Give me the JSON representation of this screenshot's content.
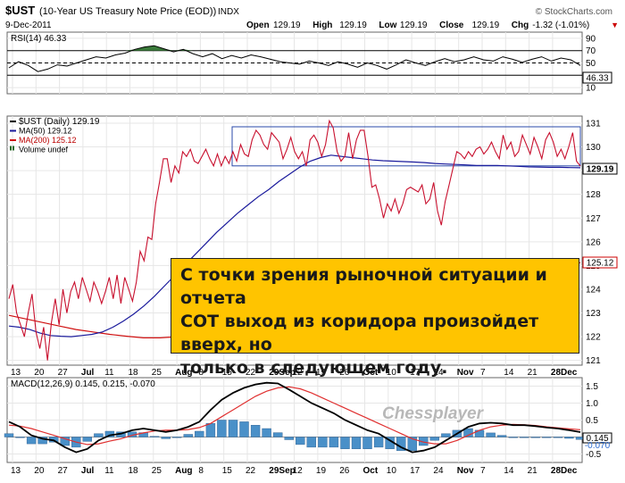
{
  "header": {
    "symbol": "$UST",
    "description": "(10-Year US Treasury Note Price (EOD))",
    "exchange": "INDX",
    "date": "9-Dec-2011",
    "source": "© StockCharts.com",
    "quote": [
      {
        "label": "Open",
        "value": "129.19"
      },
      {
        "label": "High",
        "value": "129.19"
      },
      {
        "label": "Low",
        "value": "129.19"
      },
      {
        "label": "Close",
        "value": "129.19"
      },
      {
        "label": "Chg",
        "value": "-1.32 (-1.01%)"
      }
    ],
    "chg_arrow": "▼"
  },
  "colors": {
    "price": "#c8102e",
    "ma50": "#1a1a9c",
    "ma200": "#d01010",
    "macd": "#000000",
    "signal": "#e03030",
    "hist": "#4a90c8",
    "channel": "#2a4aa8",
    "annotation_bg": "#ffc400",
    "rsi_fill": "#3a7a3a"
  },
  "annotation": {
    "lines": [
      "С точки зрения рыночной ситуации и отчета",
      "COT выход из коридора произойдет вверх, но",
      "только в следующем году."
    ]
  },
  "watermark": "Chessplayer",
  "chart_data": [
    {
      "type": "line",
      "panel": "RSI",
      "title": "RSI(14) 46.33",
      "ylim": [
        0,
        100
      ],
      "ytick_labels": [
        "90",
        "70",
        "50",
        "30",
        "10"
      ],
      "reference_lines": [
        70,
        30
      ],
      "last_value_label": "46.33",
      "series": [
        {
          "values": [
            42,
            52,
            46,
            36,
            40,
            47,
            45,
            50,
            55,
            60,
            58,
            63,
            66,
            72,
            76,
            78,
            73,
            68,
            72,
            65,
            60,
            65,
            57,
            62,
            58,
            63,
            60,
            56,
            52,
            50,
            48,
            53,
            50,
            46,
            52,
            48,
            43,
            50,
            46,
            40,
            47,
            55,
            50,
            46,
            52,
            57,
            52,
            55,
            60,
            55,
            53,
            60,
            56,
            51,
            56,
            60,
            53,
            58,
            55,
            46
          ]
        }
      ]
    },
    {
      "type": "line",
      "panel": "Price",
      "xlabel": "",
      "ylabel": "",
      "ylim": [
        120.8,
        131.3
      ],
      "ytick_labels": [
        "131",
        "130",
        "129",
        "128",
        "127",
        "126",
        "125",
        "124",
        "123",
        "122",
        "121"
      ],
      "x_tick_labels": [
        "13",
        "20",
        "27",
        "Jul",
        "11",
        "18",
        "25",
        "Aug",
        "8",
        "15",
        "22",
        "29Sep",
        "12",
        "19",
        "26",
        "Oct",
        "10",
        "17",
        "24",
        "Nov",
        "7",
        "14",
        "21",
        "28Dec"
      ],
      "legend": [
        {
          "name": "$UST (Daily) 129.19"
        },
        {
          "name": "MA(50) 129.12"
        },
        {
          "name": "MA(200) 125.12"
        },
        {
          "name": "Volume undef"
        }
      ],
      "last_value_labels": [
        "129.19",
        "125.12"
      ],
      "channel": {
        "ymin": 129.2,
        "ymax": 130.85
      },
      "series": [
        {
          "name": "$UST (Daily) 129.19",
          "values": [
            123.6,
            124.2,
            123.0,
            122.5,
            122.0,
            123.0,
            123.8,
            122.2,
            121.5,
            122.4,
            121.0,
            122.6,
            123.6,
            122.5,
            124.0,
            123.0,
            123.9,
            124.3,
            123.6,
            124.5,
            124.0,
            123.5,
            124.3,
            123.9,
            123.4,
            123.9,
            124.5,
            123.6,
            124.6,
            123.4,
            124.5,
            124.0,
            123.5,
            124.3,
            125.6,
            125.2,
            126.2,
            126.1,
            127.6,
            128.5,
            129.5,
            129.5,
            128.5,
            129.2,
            128.9,
            129.8,
            129.6,
            129.9,
            129.4,
            129.3,
            129.6,
            129.9,
            129.5,
            129.2,
            129.7,
            129.2,
            129.6,
            129.3,
            129.8,
            129.4,
            130.1,
            129.7,
            129.6,
            130.3,
            130.7,
            130.5,
            130.1,
            129.9,
            130.6,
            130.4,
            130.2,
            129.5,
            129.9,
            130.4,
            129.8,
            129.5,
            129.8,
            129.2,
            130.3,
            130.5,
            130.2,
            129.6,
            130.1,
            131.1,
            130.8,
            129.8,
            129.4,
            129.6,
            130.6,
            129.5,
            130.3,
            130.7,
            130.7,
            129.6,
            128.3,
            128.4,
            127.8,
            127.0,
            127.6,
            127.3,
            127.8,
            127.2,
            127.6,
            128.2,
            128.3,
            128.2,
            128.1,
            128.4,
            127.6,
            127.8,
            128.5,
            127.3,
            126.7,
            127.7,
            128.4,
            129.1,
            129.8,
            129.7,
            129.5,
            129.8,
            129.6,
            129.9,
            130.0,
            129.7,
            129.9,
            130.2,
            129.8,
            129.5,
            130.5,
            129.9,
            130.2,
            129.6,
            129.8,
            130.5,
            130.1,
            129.7,
            130.4,
            130.0,
            129.5,
            130.3,
            130.6,
            130.2,
            129.6,
            129.9,
            129.5,
            130.0,
            130.6,
            129.4,
            129.19
          ]
        },
        {
          "name": "MA(50) 129.12",
          "values": [
            122.45,
            122.4,
            122.3,
            122.15,
            122.05,
            122.02,
            122.0,
            122.05,
            122.1,
            122.2,
            122.4,
            122.65,
            122.95,
            123.3,
            123.7,
            124.15,
            124.6,
            125.05,
            125.5,
            125.95,
            126.4,
            126.8,
            127.2,
            127.55,
            127.9,
            128.2,
            128.55,
            128.85,
            129.15,
            129.4,
            129.55,
            129.65,
            129.6,
            129.55,
            129.5,
            129.45,
            129.42,
            129.4,
            129.38,
            129.36,
            129.34,
            129.3,
            129.28,
            129.26,
            129.24,
            129.22,
            129.22,
            129.22,
            129.2,
            129.18,
            129.16,
            129.15,
            129.14,
            129.14,
            129.13,
            129.12
          ]
        },
        {
          "name": "MA(200) 125.12",
          "values": [
            122.9,
            122.75,
            122.6,
            122.45,
            122.3,
            122.2,
            122.1,
            122.02,
            121.95,
            121.95,
            122.0,
            122.05,
            122.1,
            122.2,
            122.3,
            122.4,
            122.55,
            122.65,
            122.75,
            122.85,
            122.95,
            123.05,
            123.15,
            123.3,
            123.45,
            123.6,
            123.75,
            123.9,
            124.05,
            124.25,
            124.45,
            124.65,
            124.85,
            125.0,
            125.12
          ]
        }
      ]
    },
    {
      "type": "line",
      "panel": "MACD",
      "title": "MACD(12,26,9) 0.145, 0.215, -0.070",
      "ylim": [
        -0.75,
        1.75
      ],
      "ytick_labels": [
        "1.5",
        "1.0",
        "0.5",
        "0.0",
        "-0.5"
      ],
      "x_tick_labels": [
        "13",
        "20",
        "27",
        "Jul",
        "11",
        "18",
        "25",
        "Aug",
        "8",
        "15",
        "22",
        "29Sep",
        "12",
        "19",
        "26",
        "Oct",
        "10",
        "17",
        "24",
        "Nov",
        "7",
        "14",
        "21",
        "28Dec"
      ],
      "last_value_labels": [
        "0.145",
        "-0.070"
      ],
      "series": [
        {
          "name": "MACD",
          "values": [
            0.45,
            0.3,
            0.05,
            -0.05,
            -0.1,
            -0.3,
            -0.45,
            -0.35,
            -0.1,
            0.05,
            0.1,
            0.2,
            0.25,
            0.2,
            0.15,
            0.2,
            0.3,
            0.45,
            0.8,
            1.1,
            1.3,
            1.45,
            1.55,
            1.6,
            1.58,
            1.4,
            1.2,
            1.0,
            0.85,
            0.7,
            0.5,
            0.35,
            0.2,
            0.1,
            -0.1,
            -0.3,
            -0.45,
            -0.4,
            -0.3,
            -0.1,
            0.1,
            0.3,
            0.4,
            0.42,
            0.4,
            0.35,
            0.35,
            0.32,
            0.28,
            0.25,
            0.2,
            0.145
          ]
        },
        {
          "name": "Signal",
          "values": [
            0.35,
            0.32,
            0.25,
            0.15,
            0.05,
            -0.05,
            -0.15,
            -0.22,
            -0.2,
            -0.12,
            -0.05,
            0.05,
            0.12,
            0.18,
            0.2,
            0.2,
            0.22,
            0.28,
            0.4,
            0.6,
            0.8,
            1.0,
            1.2,
            1.35,
            1.45,
            1.48,
            1.42,
            1.3,
            1.15,
            1.0,
            0.85,
            0.7,
            0.55,
            0.4,
            0.25,
            0.1,
            -0.05,
            -0.15,
            -0.2,
            -0.2,
            -0.1,
            0.05,
            0.2,
            0.3,
            0.35,
            0.37,
            0.36,
            0.34,
            0.3,
            0.27,
            0.24,
            0.215
          ]
        },
        {
          "name": "Histogram",
          "values": [
            0.1,
            -0.02,
            -0.2,
            -0.2,
            -0.15,
            -0.25,
            -0.3,
            -0.13,
            0.1,
            0.17,
            0.15,
            0.15,
            0.13,
            0.02,
            -0.05,
            0.0,
            0.08,
            0.17,
            0.4,
            0.5,
            0.5,
            0.45,
            0.35,
            0.25,
            0.13,
            -0.08,
            -0.22,
            -0.3,
            -0.3,
            -0.3,
            -0.35,
            -0.35,
            -0.35,
            -0.3,
            -0.35,
            -0.4,
            -0.4,
            -0.25,
            -0.1,
            0.1,
            0.2,
            0.25,
            0.2,
            0.12,
            0.05,
            -0.02,
            -0.01,
            -0.02,
            -0.02,
            -0.02,
            -0.04,
            -0.07
          ]
        }
      ]
    }
  ]
}
